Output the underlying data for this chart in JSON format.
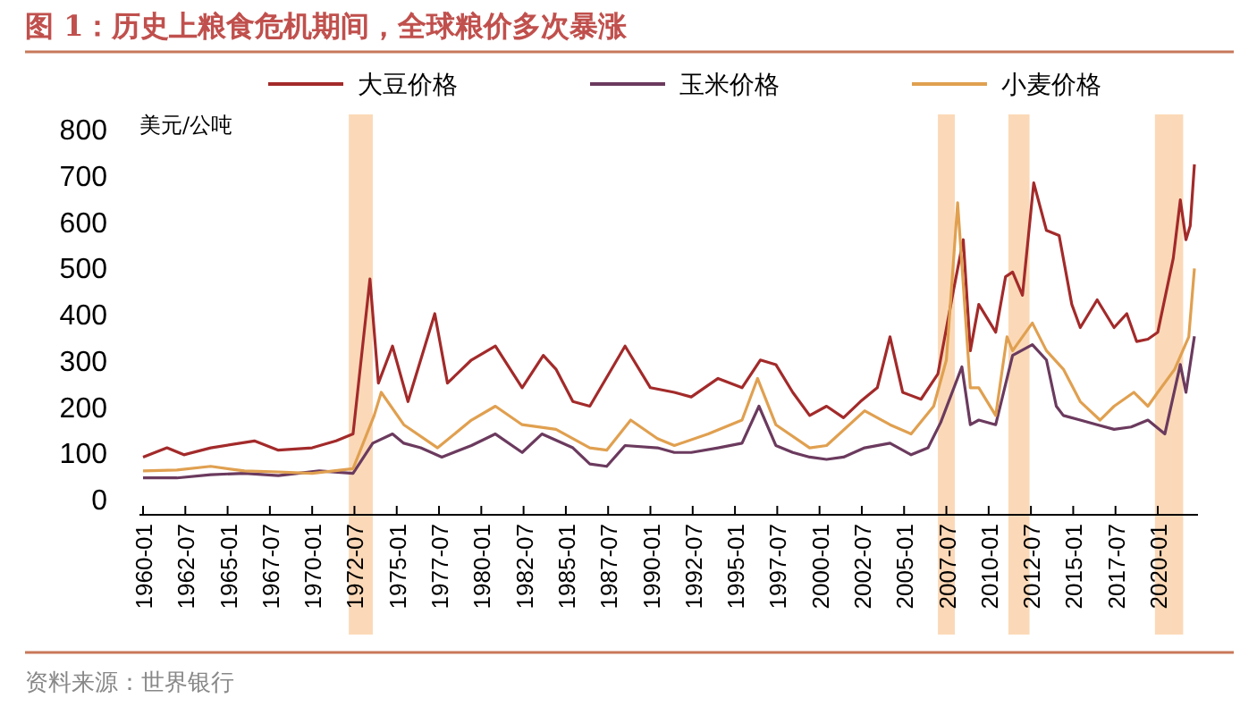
{
  "chart_data": {
    "type": "line",
    "title": "图 1：历史上粮食危机期间，全球粮价多次暴涨",
    "ylabel": "美元/公吨",
    "annotations": [
      "资料来源：世界银行"
    ],
    "legend": "top",
    "grid": false,
    "ylim": [
      0,
      800
    ],
    "yticks": [
      0,
      100,
      200,
      300,
      400,
      500,
      600,
      700,
      800
    ],
    "xlim": [
      "1960-01",
      "2022-03"
    ],
    "xticks": [
      "1960-01",
      "1962-07",
      "1965-01",
      "1967-07",
      "1970-01",
      "1972-07",
      "1975-01",
      "1977-07",
      "1980-01",
      "1982-07",
      "1985-01",
      "1987-07",
      "1990-01",
      "1992-07",
      "1995-01",
      "1997-07",
      "2000-01",
      "2002-07",
      "2005-01",
      "2007-07",
      "2010-01",
      "2012-07",
      "2015-01",
      "2017-07",
      "2020-01"
    ],
    "bands": [
      {
        "axis": "x",
        "from": "1972-03",
        "to": "1973-08",
        "color": "#fbd9b8"
      },
      {
        "axis": "x",
        "from": "2007-01",
        "to": "2008-01",
        "color": "#fbd9b8"
      },
      {
        "axis": "x",
        "from": "2011-03",
        "to": "2012-06",
        "color": "#fbd9b8"
      },
      {
        "axis": "x",
        "from": "2019-11",
        "to": "2021-07",
        "color": "#fbd9b8"
      }
    ],
    "series": [
      {
        "name": "大豆价格",
        "color": "#a32a2a",
        "x": [
          "1960-01",
          "1961-06",
          "1962-06",
          "1964-01",
          "1966-08",
          "1968-01",
          "1970-01",
          "1971-06",
          "1972-06",
          "1973-06",
          "1973-12",
          "1974-10",
          "1975-09",
          "1977-04",
          "1978-01",
          "1979-06",
          "1980-11",
          "1982-06",
          "1983-09",
          "1984-06",
          "1985-06",
          "1986-06",
          "1988-07",
          "1990-01",
          "1991-06",
          "1992-06",
          "1994-01",
          "1995-06",
          "1996-07",
          "1997-06",
          "1998-06",
          "1999-06",
          "2000-06",
          "2001-06",
          "2002-06",
          "2003-06",
          "2004-03",
          "2004-12",
          "2006-01",
          "2007-01",
          "2007-12",
          "2008-07",
          "2008-12",
          "2009-06",
          "2010-06",
          "2011-01",
          "2011-06",
          "2012-01",
          "2012-09",
          "2013-06",
          "2014-03",
          "2014-12",
          "2015-06",
          "2016-06",
          "2017-06",
          "2018-03",
          "2018-10",
          "2019-06",
          "2020-01",
          "2020-12",
          "2021-05",
          "2021-09",
          "2021-12",
          "2022-03"
        ],
        "values": [
          90,
          110,
          95,
          110,
          125,
          105,
          110,
          125,
          140,
          475,
          250,
          330,
          210,
          400,
          250,
          300,
          330,
          240,
          310,
          280,
          210,
          200,
          330,
          240,
          230,
          220,
          260,
          240,
          300,
          290,
          230,
          180,
          200,
          175,
          210,
          240,
          350,
          230,
          215,
          270,
          450,
          560,
          320,
          420,
          360,
          480,
          490,
          440,
          683,
          580,
          569,
          420,
          370,
          430,
          370,
          400,
          340,
          345,
          360,
          520,
          646,
          560,
          590,
          723
        ]
      },
      {
        "name": "玉米价格",
        "color": "#6b3a5e",
        "x": [
          "1960-01",
          "1962-01",
          "1964-01",
          "1966-01",
          "1968-01",
          "1970-06",
          "1972-06",
          "1973-08",
          "1974-10",
          "1975-06",
          "1976-06",
          "1977-09",
          "1979-06",
          "1980-11",
          "1982-06",
          "1983-08",
          "1985-06",
          "1986-06",
          "1987-06",
          "1988-07",
          "1990-06",
          "1991-06",
          "1992-06",
          "1994-01",
          "1995-06",
          "1996-06",
          "1997-06",
          "1998-06",
          "1999-06",
          "2000-06",
          "2001-06",
          "2002-09",
          "2004-03",
          "2005-06",
          "2006-06",
          "2007-03",
          "2008-06",
          "2008-12",
          "2009-06",
          "2010-06",
          "2011-06",
          "2012-08",
          "2013-06",
          "2014-01",
          "2014-06",
          "2015-06",
          "2016-06",
          "2017-06",
          "2018-06",
          "2019-06",
          "2020-06",
          "2021-05",
          "2021-09",
          "2022-03"
        ],
        "values": [
          45,
          45,
          52,
          55,
          50,
          60,
          55,
          120,
          140,
          120,
          110,
          90,
          115,
          140,
          100,
          140,
          110,
          75,
          70,
          115,
          110,
          100,
          100,
          110,
          120,
          200,
          115,
          100,
          90,
          85,
          90,
          110,
          120,
          95,
          110,
          165,
          285,
          160,
          170,
          160,
          310,
          333,
          300,
          200,
          180,
          170,
          160,
          150,
          155,
          170,
          140,
          290,
          230,
          351
        ]
      },
      {
        "name": "小麦价格",
        "color": "#e0a050",
        "x": [
          "1960-01",
          "1962-01",
          "1964-01",
          "1966-01",
          "1968-01",
          "1970-01",
          "1972-06",
          "1973-09",
          "1974-02",
          "1975-06",
          "1977-06",
          "1979-06",
          "1980-11",
          "1982-06",
          "1984-06",
          "1986-06",
          "1987-06",
          "1988-11",
          "1990-06",
          "1991-06",
          "1993-06",
          "1995-06",
          "1996-05",
          "1997-06",
          "1999-06",
          "2000-06",
          "2002-09",
          "2004-03",
          "2005-06",
          "2006-10",
          "2007-07",
          "2008-03",
          "2008-12",
          "2009-06",
          "2010-06",
          "2011-02",
          "2011-06",
          "2012-08",
          "2013-06",
          "2014-06",
          "2015-06",
          "2016-08",
          "2017-06",
          "2018-08",
          "2019-06",
          "2020-01",
          "2021-01",
          "2021-11",
          "2022-03"
        ],
        "values": [
          60,
          62,
          70,
          60,
          58,
          55,
          65,
          180,
          230,
          160,
          110,
          170,
          200,
          160,
          150,
          110,
          105,
          170,
          130,
          115,
          140,
          170,
          260,
          160,
          110,
          115,
          190,
          160,
          140,
          200,
          300,
          640,
          240,
          240,
          180,
          350,
          320,
          380,
          320,
          280,
          210,
          170,
          200,
          230,
          200,
          230,
          280,
          350,
          498
        ]
      }
    ]
  }
}
